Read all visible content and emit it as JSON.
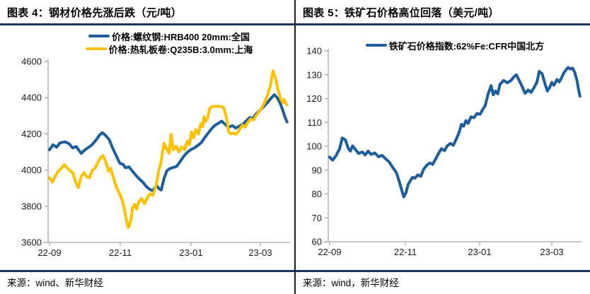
{
  "colors": {
    "header_rule_navy": "#17375E",
    "divider": "#1a1a1a",
    "axis_gray": "#A6A6A6",
    "tick_label": "#1a1a1a",
    "rebar_blue": "#1B5E9B",
    "hrc_yellow": "#FFC000",
    "iron_ore_blue": "#1B5E9B"
  },
  "panels": [
    {
      "title": "图表 4：钢材价格先涨后跌（元/吨）",
      "source": "来源：wind、新华财经"
    },
    {
      "title": "图表 5：铁矿石价格高位回落（美元/吨）",
      "source": "来源：wind，新华财经"
    }
  ],
  "chart_data": [
    {
      "type": "line",
      "title": "钢材价格先涨后跌",
      "unit": "元/吨",
      "x_unit": "months since 2022-09",
      "x_tick_labels": [
        "22-09",
        "22-11",
        "23-01",
        "23-03"
      ],
      "ylim": [
        3600,
        4600
      ],
      "y_ticks": [
        3600,
        3800,
        4000,
        4200,
        4400,
        4600
      ],
      "grid": false,
      "legend_position": "top",
      "series": [
        {
          "id": "rebar-price-line",
          "name": "价格:螺纹钢:HRB400 20mm:全国",
          "color": "#1B5E9B",
          "points": [
            [
              0,
              4112
            ],
            [
              0.1,
              4140
            ],
            [
              0.2,
              4126
            ],
            [
              0.3,
              4150
            ],
            [
              0.44,
              4156
            ],
            [
              0.56,
              4145
            ],
            [
              0.66,
              4122
            ],
            [
              0.76,
              4130
            ],
            [
              0.9,
              4092
            ],
            [
              1.0,
              4110
            ],
            [
              1.1,
              4124
            ],
            [
              1.2,
              4138
            ],
            [
              1.32,
              4165
            ],
            [
              1.42,
              4192
            ],
            [
              1.5,
              4206
            ],
            [
              1.58,
              4194
            ],
            [
              1.7,
              4168
            ],
            [
              1.8,
              4120
            ],
            [
              1.92,
              4070
            ],
            [
              2.0,
              4038
            ],
            [
              2.1,
              4030
            ],
            [
              2.16,
              4012
            ],
            [
              2.26,
              4018
            ],
            [
              2.36,
              3994
            ],
            [
              2.46,
              3970
            ],
            [
              2.56,
              3950
            ],
            [
              2.66,
              3932
            ],
            [
              2.76,
              3908
            ],
            [
              2.86,
              3892
            ],
            [
              2.94,
              3886
            ],
            [
              3.0,
              3902
            ],
            [
              3.06,
              3912
            ],
            [
              3.12,
              3896
            ],
            [
              3.18,
              3890
            ],
            [
              3.26,
              3954
            ],
            [
              3.34,
              3996
            ],
            [
              3.42,
              4008
            ],
            [
              3.52,
              4014
            ],
            [
              3.62,
              4020
            ],
            [
              3.72,
              4048
            ],
            [
              3.82,
              4076
            ],
            [
              3.92,
              4098
            ],
            [
              4.02,
              4112
            ],
            [
              4.12,
              4122
            ],
            [
              4.22,
              4136
            ],
            [
              4.32,
              4152
            ],
            [
              4.42,
              4180
            ],
            [
              4.5,
              4200
            ],
            [
              4.6,
              4226
            ],
            [
              4.7,
              4246
            ],
            [
              4.8,
              4258
            ],
            [
              4.9,
              4270
            ],
            [
              5.0,
              4252
            ],
            [
              5.1,
              4236
            ],
            [
              5.2,
              4246
            ],
            [
              5.3,
              4232
            ],
            [
              5.4,
              4242
            ],
            [
              5.5,
              4252
            ],
            [
              5.6,
              4272
            ],
            [
              5.7,
              4290
            ],
            [
              5.78,
              4284
            ],
            [
              5.88,
              4310
            ],
            [
              6.0,
              4332
            ],
            [
              6.1,
              4352
            ],
            [
              6.2,
              4372
            ],
            [
              6.3,
              4396
            ],
            [
              6.4,
              4416
            ],
            [
              6.48,
              4400
            ],
            [
              6.56,
              4372
            ],
            [
              6.64,
              4330
            ],
            [
              6.7,
              4292
            ],
            [
              6.76,
              4266
            ]
          ]
        },
        {
          "id": "hrc-price-line",
          "name": "价格:热轧板卷:Q235B:3.0mm:上海",
          "color": "#FFC000",
          "points": [
            [
              0,
              3958
            ],
            [
              0.08,
              3934
            ],
            [
              0.16,
              3964
            ],
            [
              0.24,
              3992
            ],
            [
              0.32,
              4006
            ],
            [
              0.42,
              4030
            ],
            [
              0.5,
              4012
            ],
            [
              0.58,
              3996
            ],
            [
              0.66,
              3986
            ],
            [
              0.74,
              3934
            ],
            [
              0.82,
              3902
            ],
            [
              0.9,
              3964
            ],
            [
              0.98,
              3986
            ],
            [
              1.06,
              3962
            ],
            [
              1.14,
              3958
            ],
            [
              1.22,
              4000
            ],
            [
              1.3,
              4010
            ],
            [
              1.38,
              4044
            ],
            [
              1.46,
              4070
            ],
            [
              1.52,
              4080
            ],
            [
              1.6,
              4046
            ],
            [
              1.68,
              3994
            ],
            [
              1.74,
              4010
            ],
            [
              1.82,
              3956
            ],
            [
              1.9,
              3906
            ],
            [
              1.98,
              3874
            ],
            [
              2.06,
              3840
            ],
            [
              2.12,
              3794
            ],
            [
              2.18,
              3728
            ],
            [
              2.24,
              3682
            ],
            [
              2.28,
              3696
            ],
            [
              2.32,
              3728
            ],
            [
              2.36,
              3790
            ],
            [
              2.42,
              3810
            ],
            [
              2.48,
              3784
            ],
            [
              2.54,
              3826
            ],
            [
              2.62,
              3842
            ],
            [
              2.7,
              3814
            ],
            [
              2.78,
              3846
            ],
            [
              2.86,
              3868
            ],
            [
              2.94,
              3860
            ],
            [
              3.0,
              3892
            ],
            [
              3.04,
              3920
            ],
            [
              3.1,
              3990
            ],
            [
              3.16,
              4032
            ],
            [
              3.26,
              4148
            ],
            [
              3.32,
              4120
            ],
            [
              3.4,
              4092
            ],
            [
              3.46,
              4198
            ],
            [
              3.52,
              4112
            ],
            [
              3.6,
              4132
            ],
            [
              3.68,
              4100
            ],
            [
              3.76,
              4128
            ],
            [
              3.84,
              4112
            ],
            [
              3.92,
              4160
            ],
            [
              3.98,
              4140
            ],
            [
              4.04,
              4210
            ],
            [
              4.1,
              4178
            ],
            [
              4.16,
              4224
            ],
            [
              4.24,
              4198
            ],
            [
              4.3,
              4256
            ],
            [
              4.36,
              4240
            ],
            [
              4.4,
              4295
            ],
            [
              4.44,
              4268
            ],
            [
              4.5,
              4290
            ],
            [
              4.56,
              4340
            ],
            [
              4.64,
              4352
            ],
            [
              4.76,
              4352
            ],
            [
              4.88,
              4352
            ],
            [
              4.96,
              4344
            ],
            [
              5.04,
              4286
            ],
            [
              5.1,
              4210
            ],
            [
              5.16,
              4200
            ],
            [
              5.24,
              4204
            ],
            [
              5.3,
              4198
            ],
            [
              5.36,
              4208
            ],
            [
              5.44,
              4235
            ],
            [
              5.5,
              4248
            ],
            [
              5.56,
              4238
            ],
            [
              5.64,
              4262
            ],
            [
              5.72,
              4282
            ],
            [
              5.8,
              4276
            ],
            [
              5.88,
              4300
            ],
            [
              5.96,
              4322
            ],
            [
              6.04,
              4345
            ],
            [
              6.12,
              4372
            ],
            [
              6.2,
              4410
            ],
            [
              6.28,
              4462
            ],
            [
              6.36,
              4548
            ],
            [
              6.44,
              4500
            ],
            [
              6.5,
              4448
            ],
            [
              6.58,
              4394
            ],
            [
              6.64,
              4372
            ],
            [
              6.68,
              4390
            ],
            [
              6.72,
              4372
            ],
            [
              6.76,
              4360
            ]
          ]
        }
      ]
    },
    {
      "type": "line",
      "title": "铁矿石价格高位回落",
      "unit": "美元/吨",
      "x_unit": "months since 2022-09",
      "x_tick_labels": [
        "22-09",
        "22-11",
        "23-01",
        "23-03"
      ],
      "ylim": [
        60,
        140
      ],
      "y_ticks": [
        60,
        70,
        80,
        90,
        100,
        110,
        120,
        130,
        140
      ],
      "grid": false,
      "legend_position": "top",
      "series": [
        {
          "id": "iron-ore-price-line",
          "name": "铁矿石价格指数:62%Fe:CFR中国北方",
          "color": "#1B5E9B",
          "points": [
            [
              0,
              95.5
            ],
            [
              0.08,
              94.2
            ],
            [
              0.17,
              96.0
            ],
            [
              0.27,
              99.0
            ],
            [
              0.34,
              103.5
            ],
            [
              0.42,
              102.8
            ],
            [
              0.5,
              99.2
            ],
            [
              0.56,
              98.0
            ],
            [
              0.62,
              100.2
            ],
            [
              0.7,
              98.6
            ],
            [
              0.78,
              97.0
            ],
            [
              0.88,
              97.6
            ],
            [
              0.96,
              96.4
            ],
            [
              1.04,
              98.0
            ],
            [
              1.12,
              96.6
            ],
            [
              1.22,
              97.2
            ],
            [
              1.32,
              95.6
            ],
            [
              1.42,
              96.2
            ],
            [
              1.52,
              94.6
            ],
            [
              1.6,
              93.6
            ],
            [
              1.7,
              91.2
            ],
            [
              1.8,
              89.0
            ],
            [
              1.88,
              85.2
            ],
            [
              1.94,
              82.0
            ],
            [
              2.0,
              78.8
            ],
            [
              2.06,
              80.4
            ],
            [
              2.12,
              84.0
            ],
            [
              2.18,
              85.6
            ],
            [
              2.24,
              87.0
            ],
            [
              2.3,
              86.6
            ],
            [
              2.38,
              88.0
            ],
            [
              2.46,
              87.4
            ],
            [
              2.54,
              90.4
            ],
            [
              2.62,
              92.0
            ],
            [
              2.7,
              93.0
            ],
            [
              2.78,
              92.4
            ],
            [
              2.86,
              94.6
            ],
            [
              2.94,
              97.0
            ],
            [
              3.02,
              99.0
            ],
            [
              3.1,
              98.2
            ],
            [
              3.18,
              100.2
            ],
            [
              3.26,
              101.2
            ],
            [
              3.34,
              100.4
            ],
            [
              3.42,
              103.0
            ],
            [
              3.5,
              106.0
            ],
            [
              3.56,
              109.2
            ],
            [
              3.62,
              108.4
            ],
            [
              3.68,
              110.8
            ],
            [
              3.74,
              109.6
            ],
            [
              3.82,
              112.4
            ],
            [
              3.9,
              112.0
            ],
            [
              3.98,
              113.8
            ],
            [
              4.06,
              113.4
            ],
            [
              4.14,
              115.6
            ],
            [
              4.2,
              117.0
            ],
            [
              4.28,
              122.0
            ],
            [
              4.36,
              125.4
            ],
            [
              4.42,
              121.6
            ],
            [
              4.48,
              123.2
            ],
            [
              4.54,
              122.0
            ],
            [
              4.6,
              126.0
            ],
            [
              4.7,
              127.6
            ],
            [
              4.8,
              126.6
            ],
            [
              4.9,
              127.6
            ],
            [
              4.98,
              129.2
            ],
            [
              5.04,
              130.0
            ],
            [
              5.12,
              127.6
            ],
            [
              5.2,
              125.0
            ],
            [
              5.28,
              122.2
            ],
            [
              5.36,
              123.6
            ],
            [
              5.44,
              122.6
            ],
            [
              5.52,
              124.6
            ],
            [
              5.6,
              127.0
            ],
            [
              5.66,
              131.4
            ],
            [
              5.74,
              130.4
            ],
            [
              5.82,
              126.0
            ],
            [
              5.88,
              123.2
            ],
            [
              5.94,
              124.6
            ],
            [
              6.0,
              126.8
            ],
            [
              6.06,
              125.6
            ],
            [
              6.14,
              128.0
            ],
            [
              6.2,
              127.0
            ],
            [
              6.26,
              128.6
            ],
            [
              6.32,
              130.6
            ],
            [
              6.38,
              132.0
            ],
            [
              6.44,
              133.0
            ],
            [
              6.5,
              132.4
            ],
            [
              6.56,
              132.8
            ],
            [
              6.62,
              131.0
            ],
            [
              6.68,
              127.6
            ],
            [
              6.72,
              124.0
            ],
            [
              6.76,
              121.0
            ]
          ]
        }
      ]
    }
  ]
}
